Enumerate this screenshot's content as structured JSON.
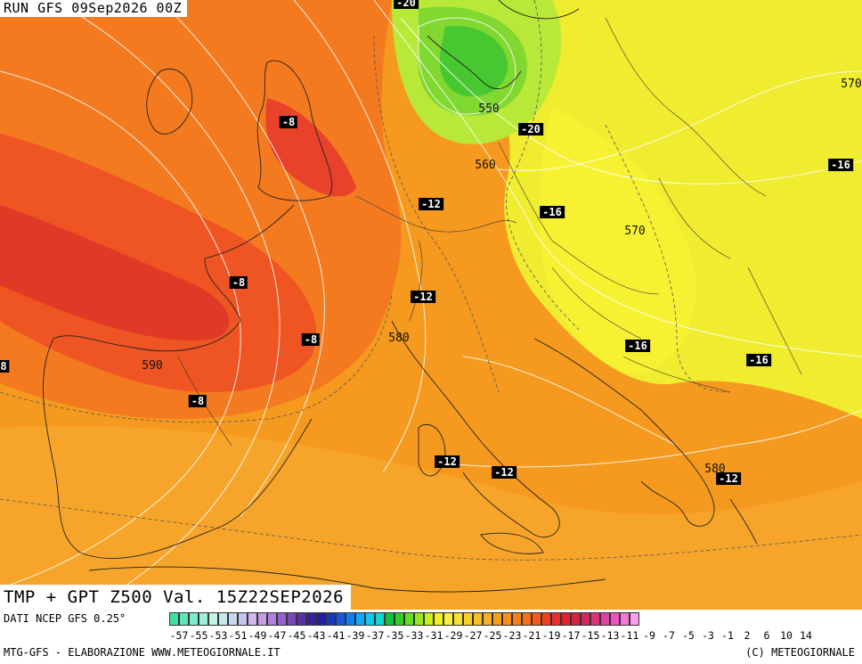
{
  "header": {
    "run": "RUN GFS 09Sep2026 00Z"
  },
  "title": "TMP + GPT Z500 Val. 15Z22SEP2026",
  "temp_labels": [
    "-20",
    "-8",
    "-20",
    "-16",
    "-12",
    "-16",
    "-12",
    "-8",
    "-8",
    "-8",
    "-16",
    "-16",
    "-12",
    "-12",
    "-12",
    "8"
  ],
  "gpt_labels": [
    "550",
    "560",
    "570",
    "570",
    "580",
    "590",
    "580"
  ],
  "legend": {
    "source": "DATI NCEP GFS 0.25°",
    "ticks": [
      "-57",
      "-55",
      "-53",
      "-51",
      "-49",
      "-47",
      "-45",
      "-43",
      "-41",
      "-39",
      "-37",
      "-35",
      "-33",
      "-31",
      "-29",
      "-27",
      "-25",
      "-23",
      "-21",
      "-19",
      "-17",
      "-15",
      "-13",
      "-11",
      "-9",
      "-7",
      "-5",
      "-3",
      "-1",
      "2",
      "6",
      "10",
      "14"
    ],
    "colors": [
      "#3fe0a0",
      "#5fe6b8",
      "#7eecc8",
      "#9ef0d8",
      "#bff4e6",
      "#c8e8f0",
      "#c8d8f0",
      "#c8c4f0",
      "#d2b8ee",
      "#c89be8",
      "#b07edc",
      "#9660cc",
      "#7848b8",
      "#5a30a8",
      "#3c2098",
      "#2020a0",
      "#1838c0",
      "#1858e0",
      "#1080f0",
      "#10a8f8",
      "#10c8f0",
      "#10d8d0",
      "#10c040",
      "#30d020",
      "#60e020",
      "#98e820",
      "#c8f020",
      "#f0f020",
      "#f8f040",
      "#f8e030",
      "#f8d020",
      "#f8c020",
      "#f8b020",
      "#f8a018",
      "#f89018",
      "#f88018",
      "#f87018",
      "#f85818",
      "#f04020",
      "#e83028",
      "#e02030",
      "#d82040",
      "#d02858",
      "#e03080",
      "#e040a0",
      "#f050c0",
      "#f078d8",
      "#f8a0e8"
    ]
  },
  "footer": {
    "left": "MTG-GFS - ELABORAZIONE WWW.METEOGIORNALE.IT",
    "right": "(C) METEOGIORNALE"
  }
}
